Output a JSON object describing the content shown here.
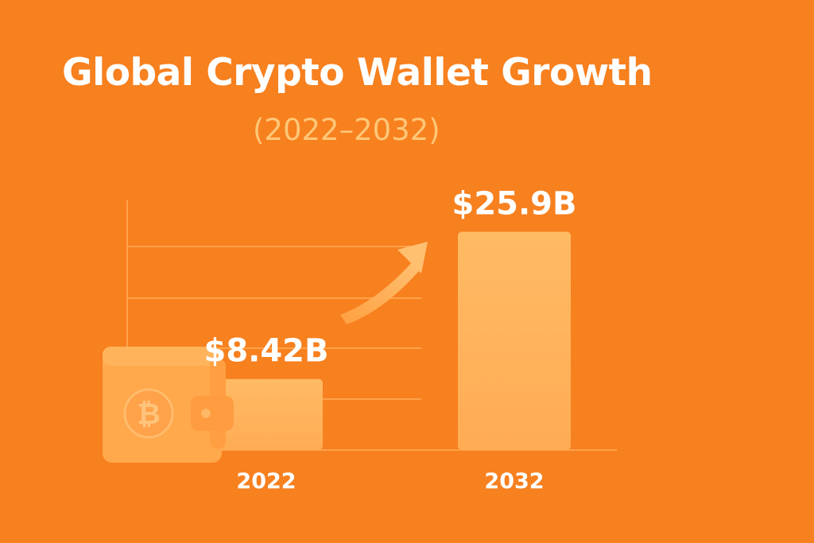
{
  "chart_data": {
    "type": "bar",
    "title": "Global Crypto Wallet Growth",
    "subtitle": "(2022–2032)",
    "categories": [
      "2022",
      "2032"
    ],
    "values": [
      8.42,
      25.9
    ],
    "value_labels": [
      "$8.42B",
      "$25.9B"
    ],
    "unit": "billion USD",
    "grid": true,
    "legend": "none",
    "decorations": [
      "wallet-icon",
      "bitcoin-icon",
      "growth-arrow-icon"
    ]
  },
  "colors": {
    "background": "#f7801f",
    "bar": "#ffb45c",
    "wallet": "#ffa84c",
    "grid": "#ffa24a",
    "text": "#ffffff",
    "subtitle": "#ffc777"
  }
}
